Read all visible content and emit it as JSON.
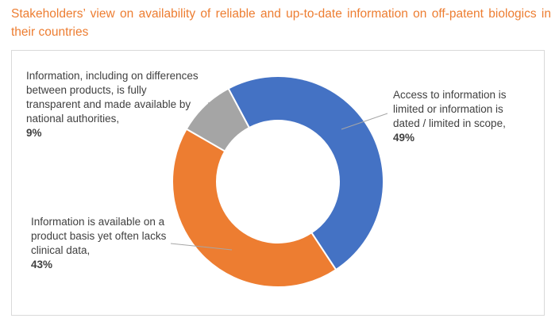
{
  "chart_data": {
    "type": "pie",
    "donut": true,
    "title": "Stakeholders’ view on availability of reliable and up-to-date information on off-patent biologics in their countries",
    "slices": [
      {
        "label": "Access to information is limited or information is dated / limited in scope,",
        "value": 49,
        "display": "49%",
        "color": "#4472C4"
      },
      {
        "label": "Information is available on a product basis yet often lacks clinical data,",
        "value": 43,
        "display": "43%",
        "color": "#ED7D31"
      },
      {
        "label": "Information, including on differences between products, is fully transparent and made available by national authorities,",
        "value": 9,
        "display": "9%",
        "color": "#A5A5A5"
      }
    ]
  }
}
